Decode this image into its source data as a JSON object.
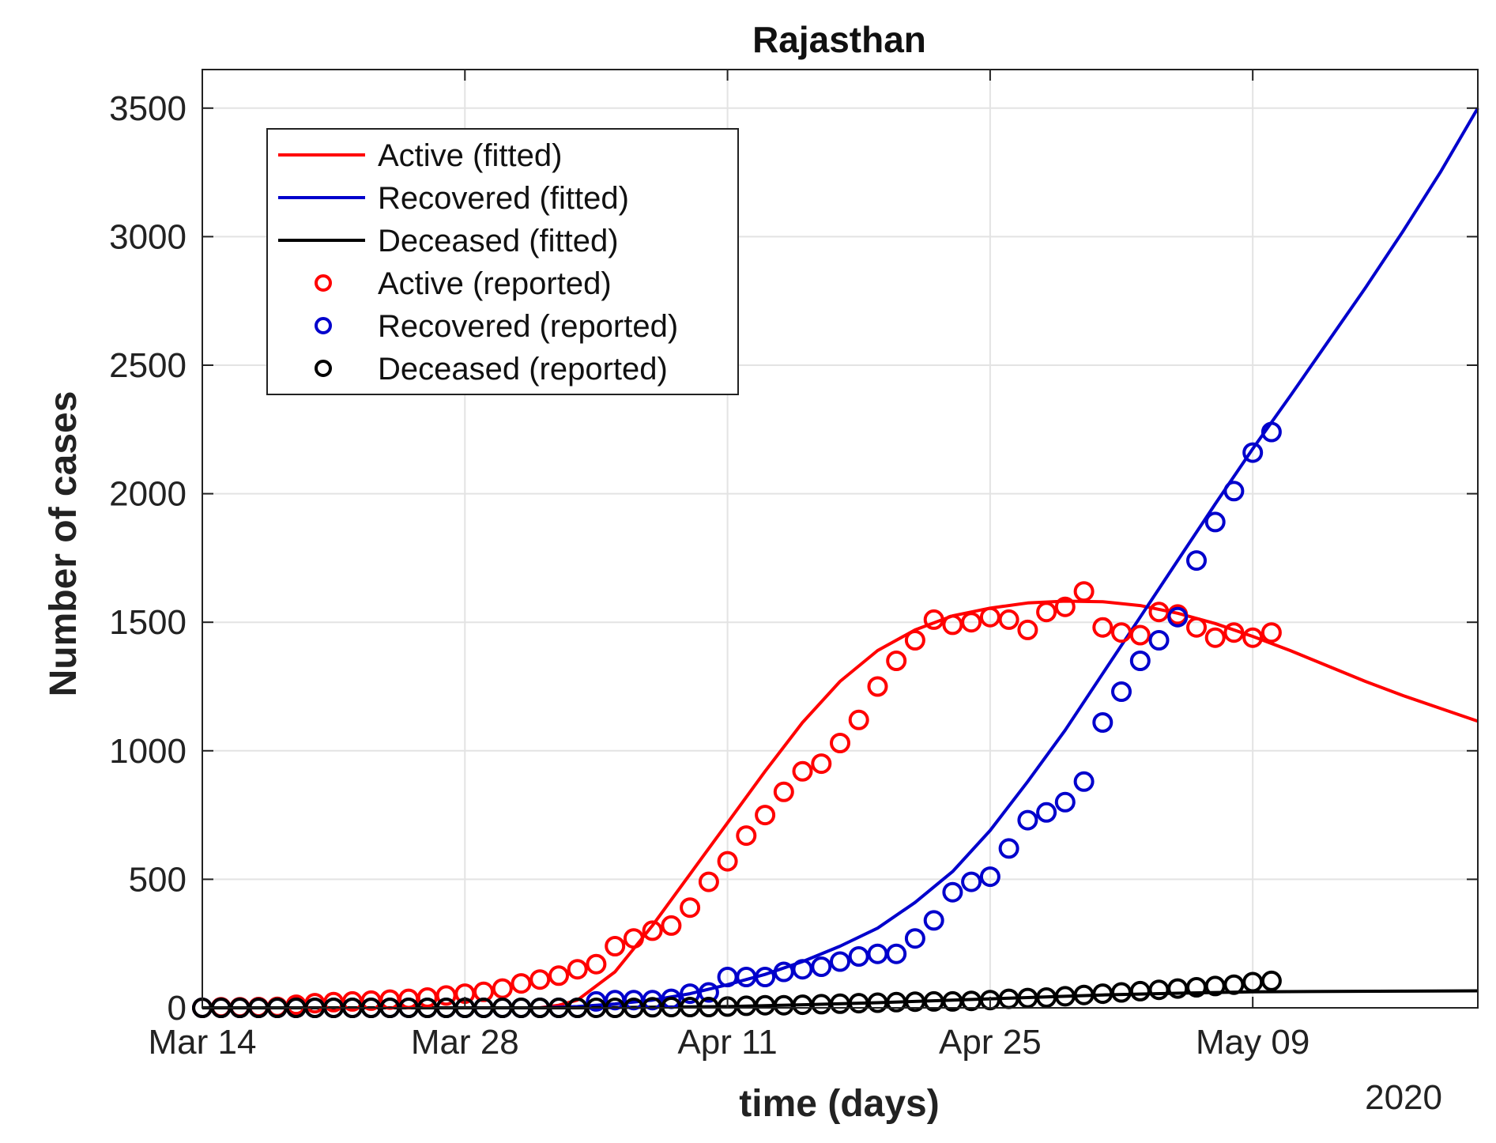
{
  "chart_data": {
    "type": "line",
    "title": "Rajasthan",
    "xlabel": "time (days)",
    "ylabel": "Number of cases",
    "year_label": "2020",
    "x_unit": "days since Mar 14, 2020",
    "xlim": [
      0,
      68
    ],
    "ylim": [
      0,
      3650
    ],
    "x_ticks": [
      {
        "x": 0,
        "label": "Mar 14"
      },
      {
        "x": 14,
        "label": "Mar 28"
      },
      {
        "x": 28,
        "label": "Apr 11"
      },
      {
        "x": 42,
        "label": "Apr 25"
      },
      {
        "x": 56,
        "label": "May 09"
      }
    ],
    "y_ticks": [
      0,
      500,
      1000,
      1500,
      2000,
      2500,
      3000,
      3500
    ],
    "grid": true,
    "legend_position": "top-left",
    "colors": {
      "active": "#ff0000",
      "recovered": "#0000cc",
      "deceased": "#000000"
    },
    "series": [
      {
        "name": "Active (fitted)",
        "style": "line",
        "color": "#ff0000",
        "x": [
          0,
          8,
          14,
          16,
          18,
          19,
          20,
          22,
          24,
          26,
          28,
          30,
          32,
          34,
          36,
          38,
          40,
          42,
          44,
          46,
          48,
          50,
          52,
          54,
          56,
          58,
          60,
          62,
          64,
          66,
          68
        ],
        "y": [
          0,
          0,
          0,
          0,
          0,
          10,
          30,
          140,
          320,
          520,
          720,
          920,
          1110,
          1270,
          1390,
          1470,
          1525,
          1555,
          1575,
          1582,
          1580,
          1565,
          1535,
          1495,
          1445,
          1390,
          1330,
          1270,
          1215,
          1165,
          1115
        ]
      },
      {
        "name": "Recovered (fitted)",
        "style": "line",
        "color": "#0000cc",
        "x": [
          0,
          18,
          20,
          22,
          24,
          26,
          28,
          30,
          32,
          34,
          36,
          38,
          40,
          42,
          44,
          46,
          48,
          50,
          52,
          54,
          56,
          58,
          60,
          62,
          64,
          66,
          68
        ],
        "y": [
          0,
          0,
          5,
          15,
          30,
          55,
          90,
          130,
          180,
          240,
          310,
          410,
          530,
          690,
          880,
          1080,
          1300,
          1520,
          1740,
          1960,
          2175,
          2380,
          2590,
          2800,
          3020,
          3250,
          3500
        ]
      },
      {
        "name": "Deceased (fitted)",
        "style": "line",
        "color": "#000000",
        "x": [
          0,
          20,
          28,
          32,
          36,
          40,
          44,
          48,
          52,
          56,
          60,
          64,
          68
        ],
        "y": [
          0,
          0,
          5,
          12,
          20,
          30,
          40,
          50,
          57,
          62,
          64,
          65,
          66
        ]
      },
      {
        "name": "Active (reported)",
        "style": "marker",
        "color": "#ff0000",
        "x": [
          0,
          1,
          2,
          3,
          4,
          5,
          6,
          7,
          8,
          9,
          10,
          11,
          12,
          13,
          14,
          15,
          16,
          17,
          18,
          19,
          20,
          21,
          22,
          23,
          24,
          25,
          26,
          27,
          28,
          29,
          30,
          31,
          32,
          33,
          34,
          35,
          36,
          37,
          38,
          39,
          40,
          41,
          42,
          43,
          44,
          45,
          46,
          47,
          48,
          49,
          50,
          51,
          52,
          53,
          54,
          55,
          56,
          57
        ],
        "y": [
          0,
          2,
          2,
          3,
          4,
          12,
          18,
          22,
          25,
          28,
          32,
          35,
          40,
          48,
          55,
          62,
          75,
          95,
          110,
          125,
          150,
          170,
          240,
          270,
          300,
          320,
          390,
          490,
          570,
          670,
          750,
          840,
          920,
          950,
          1030,
          1120,
          1250,
          1350,
          1430,
          1510,
          1490,
          1500,
          1520,
          1510,
          1470,
          1540,
          1560,
          1620,
          1480,
          1460,
          1450,
          1540,
          1530,
          1480,
          1440,
          1460,
          1440,
          1460
        ]
      },
      {
        "name": "Recovered (reported)",
        "style": "marker",
        "color": "#0000cc",
        "x": [
          0,
          1,
          2,
          3,
          4,
          5,
          6,
          7,
          8,
          9,
          10,
          11,
          12,
          13,
          14,
          15,
          16,
          17,
          18,
          19,
          20,
          21,
          22,
          23,
          24,
          25,
          26,
          27,
          28,
          29,
          30,
          31,
          32,
          33,
          34,
          35,
          36,
          37,
          38,
          39,
          40,
          41,
          42,
          43,
          44,
          45,
          46,
          47,
          48,
          49,
          50,
          51,
          52,
          53,
          54,
          55,
          56,
          57
        ],
        "y": [
          0,
          0,
          0,
          0,
          0,
          0,
          0,
          0,
          0,
          0,
          0,
          0,
          0,
          0,
          0,
          0,
          0,
          0,
          0,
          0,
          0,
          25,
          30,
          30,
          30,
          35,
          55,
          60,
          120,
          120,
          120,
          140,
          150,
          160,
          180,
          200,
          210,
          210,
          270,
          340,
          450,
          490,
          510,
          620,
          730,
          760,
          800,
          880,
          1110,
          1230,
          1350,
          1430,
          1520,
          1740,
          1890,
          2010,
          2160,
          2240
        ]
      },
      {
        "name": "Deceased  (reported)",
        "style": "marker",
        "color": "#000000",
        "x": [
          0,
          1,
          2,
          3,
          4,
          5,
          6,
          7,
          8,
          9,
          10,
          11,
          12,
          13,
          14,
          15,
          16,
          17,
          18,
          19,
          20,
          21,
          22,
          23,
          24,
          25,
          26,
          27,
          28,
          29,
          30,
          31,
          32,
          33,
          34,
          35,
          36,
          37,
          38,
          39,
          40,
          41,
          42,
          43,
          44,
          45,
          46,
          47,
          48,
          49,
          50,
          51,
          52,
          53,
          54,
          55,
          56,
          57
        ],
        "y": [
          0,
          0,
          0,
          0,
          0,
          0,
          0,
          0,
          0,
          0,
          0,
          0,
          0,
          0,
          0,
          0,
          0,
          0,
          0,
          0,
          0,
          0,
          0,
          0,
          2,
          3,
          3,
          3,
          5,
          8,
          10,
          10,
          12,
          14,
          16,
          18,
          20,
          22,
          24,
          25,
          25,
          27,
          30,
          35,
          38,
          40,
          45,
          50,
          55,
          60,
          65,
          70,
          75,
          80,
          85,
          90,
          100,
          105
        ]
      }
    ]
  }
}
